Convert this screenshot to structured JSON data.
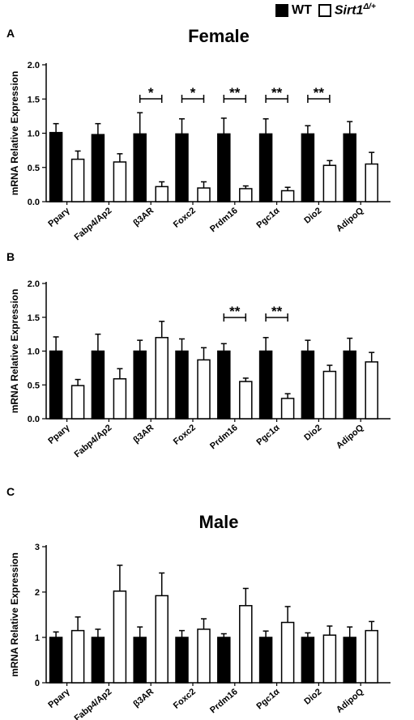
{
  "legend": {
    "wt_label": "WT",
    "mut_label": "Sirt1",
    "mut_sup": "Δ/+",
    "colors": {
      "wt": "#000000",
      "mut": "#ffffff"
    }
  },
  "chart_data": [
    {
      "panel": "A",
      "type": "bar",
      "title": "Female",
      "ylabel": "mRNA Relative Expression",
      "ylim": [
        0,
        2.0
      ],
      "yticks": [
        "0.0",
        "0.5",
        "1.0",
        "1.5",
        "2.0"
      ],
      "categories": [
        "Pparγ",
        "Fabp4/Ap2",
        "β3AR",
        "Foxc2",
        "Prdm16",
        "Pgc1α",
        "Dio2",
        "AdipoQ"
      ],
      "series": [
        {
          "name": "WT",
          "values": [
            1.01,
            0.98,
            0.99,
            0.99,
            0.99,
            0.99,
            0.99,
            0.99
          ],
          "errors": [
            0.13,
            0.16,
            0.31,
            0.22,
            0.23,
            0.22,
            0.12,
            0.18
          ]
        },
        {
          "name": "Sirt1Δ/+",
          "values": [
            0.62,
            0.58,
            0.22,
            0.2,
            0.19,
            0.16,
            0.53,
            0.55
          ],
          "errors": [
            0.12,
            0.12,
            0.07,
            0.09,
            0.04,
            0.05,
            0.07,
            0.17
          ]
        }
      ],
      "significance": [
        {
          "category": "β3AR",
          "label": "*"
        },
        {
          "category": "Foxc2",
          "label": "*"
        },
        {
          "category": "Prdm16",
          "label": "**"
        },
        {
          "category": "Pgc1α",
          "label": "**"
        },
        {
          "category": "Dio2",
          "label": "**"
        }
      ]
    },
    {
      "panel": "B",
      "type": "bar",
      "title": "",
      "ylabel": "mRNA Relative Expression",
      "ylim": [
        0,
        2.0
      ],
      "yticks": [
        "0.0",
        "0.5",
        "1.0",
        "1.5",
        "2.0"
      ],
      "categories": [
        "Pparγ",
        "Fabp4/Ap2",
        "β3AR",
        "Foxc2",
        "Prdm16",
        "Pgc1α",
        "Dio2",
        "AdipoQ"
      ],
      "series": [
        {
          "name": "WT",
          "values": [
            1.0,
            1.0,
            1.0,
            1.0,
            1.0,
            1.0,
            1.0,
            1.0
          ],
          "errors": [
            0.21,
            0.25,
            0.16,
            0.18,
            0.11,
            0.2,
            0.16,
            0.19
          ]
        },
        {
          "name": "Sirt1Δ/+",
          "values": [
            0.49,
            0.59,
            1.2,
            0.87,
            0.55,
            0.3,
            0.7,
            0.84
          ],
          "errors": [
            0.09,
            0.15,
            0.24,
            0.18,
            0.05,
            0.07,
            0.09,
            0.14
          ]
        }
      ],
      "significance": [
        {
          "category": "Prdm16",
          "label": "**"
        },
        {
          "category": "Pgc1α",
          "label": "**"
        }
      ]
    },
    {
      "panel": "C",
      "type": "bar",
      "title": "Male",
      "ylabel": "mRNA Relative Expression",
      "ylim": [
        0,
        3
      ],
      "yticks": [
        "0",
        "1",
        "2",
        "3"
      ],
      "categories": [
        "Pparγ",
        "Fabp4/Ap2",
        "β3AR",
        "Foxc2",
        "Prdm16",
        "Pgc1α",
        "Dio2",
        "AdipoQ"
      ],
      "series": [
        {
          "name": "WT",
          "values": [
            1.0,
            1.0,
            1.0,
            1.0,
            1.0,
            1.0,
            1.0,
            1.0
          ],
          "errors": [
            0.12,
            0.18,
            0.23,
            0.15,
            0.08,
            0.14,
            0.1,
            0.23
          ]
        },
        {
          "name": "Sirt1Δ/+",
          "values": [
            1.15,
            2.02,
            1.92,
            1.18,
            1.7,
            1.33,
            1.05,
            1.15
          ],
          "errors": [
            0.3,
            0.57,
            0.5,
            0.23,
            0.38,
            0.35,
            0.2,
            0.2
          ]
        }
      ],
      "significance": []
    }
  ]
}
